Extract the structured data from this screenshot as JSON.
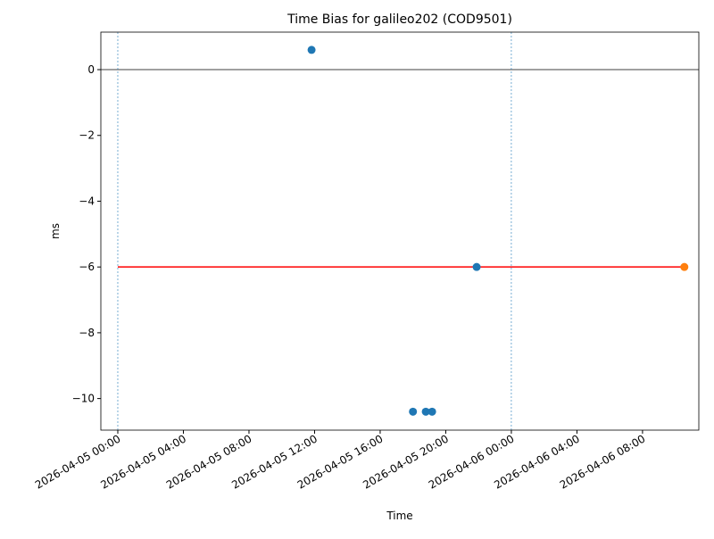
{
  "chart_data": {
    "type": "scatter",
    "title": "Time Bias for galileo202 (COD9501)",
    "x_label": "Time",
    "y_label": "ms",
    "xlim": [
      "2026-04-04 22:58",
      "2026-04-06 11:26"
    ],
    "xticks": [
      "2026-04-05 00:00",
      "2026-04-05 04:00",
      "2026-04-05 08:00",
      "2026-04-05 12:00",
      "2026-04-05 16:00",
      "2026-04-05 20:00",
      "2026-04-06 00:00",
      "2026-04-06 04:00",
      "2026-04-06 08:00"
    ],
    "ylim": [
      -10.96,
      1.14
    ],
    "yticks": [
      {
        "value": -10,
        "label": "−10"
      },
      {
        "value": -8,
        "label": "−8"
      },
      {
        "value": -6,
        "label": "−6"
      },
      {
        "value": -4,
        "label": "−4"
      },
      {
        "value": -2,
        "label": "−2"
      },
      0
    ],
    "series": [
      {
        "mode": "line",
        "color": "#ff0000",
        "x": [
          "2026-04-05 00:00",
          "2026-04-06 10:33"
        ],
        "values": [
          -6,
          -6
        ]
      },
      {
        "mode": "markers",
        "color": "#1f77b4",
        "x": [
          "2026-04-05 11:49",
          "2026-04-05 18:00",
          "2026-04-05 18:47",
          "2026-04-05 19:10",
          "2026-04-05 21:53"
        ],
        "values": [
          0.6,
          -10.4,
          -10.4,
          -10.4,
          -6
        ]
      },
      {
        "mode": "markers",
        "color": "#ff7f0e",
        "x": [
          "2026-04-06 10:33"
        ],
        "values": [
          -6
        ]
      }
    ],
    "hline": {
      "value": 0,
      "color": "#000000"
    },
    "vlines": {
      "x": [
        "2026-04-05 00:00",
        "2026-04-06 00:00"
      ],
      "color": "#1f77b4"
    }
  }
}
